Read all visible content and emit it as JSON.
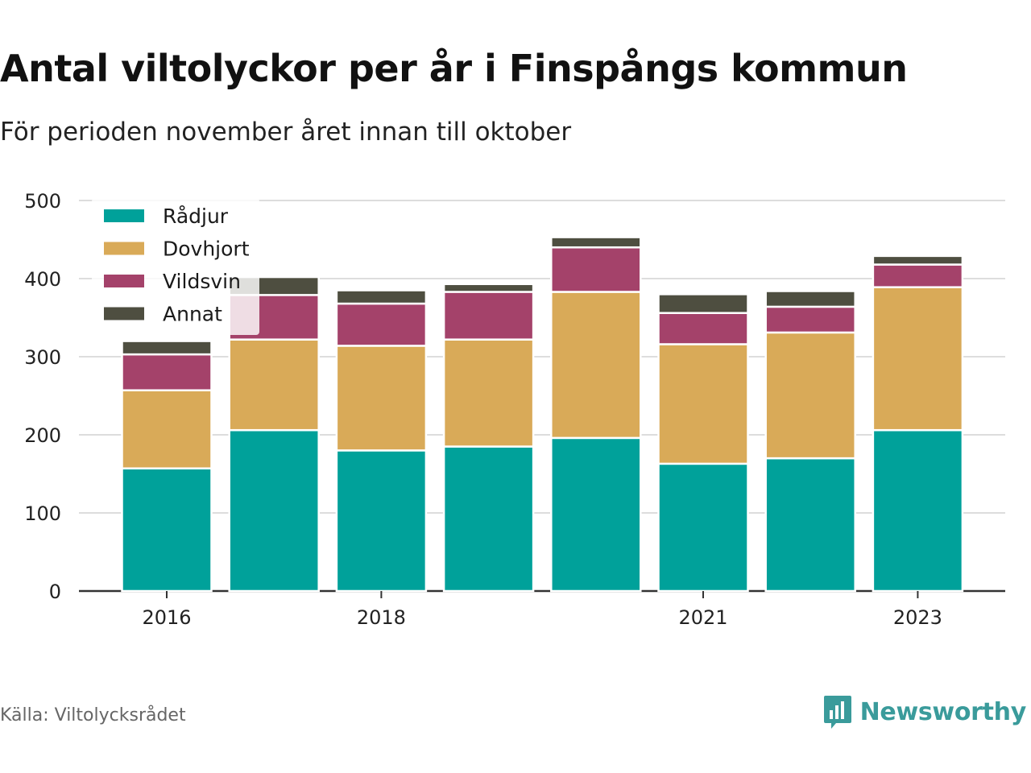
{
  "header": {
    "title": "Antal viltolyckor per år i Finspångs kommun",
    "subtitle": "För perioden november året innan till oktober"
  },
  "footer": {
    "source": "Källa: Viltolycksrådet",
    "brand": "Newsworthy",
    "brand_icon": "newsworthy-logo-icon"
  },
  "colors": {
    "Rådjur": "#00a19a",
    "Dovhjort": "#d9aa58",
    "Vildsvin": "#a4426a",
    "Annat": "#4e4e40",
    "grid": "#dddddd",
    "axis": "#333333",
    "brand": "#3a9b9b"
  },
  "chart_data": {
    "type": "bar",
    "stacked": true,
    "categories": [
      "2016",
      "2017",
      "2018",
      "2019",
      "2020",
      "2021",
      "2022",
      "2023"
    ],
    "tick_labels": [
      "2016",
      "",
      "2018",
      "",
      "",
      "2021",
      "",
      "2023"
    ],
    "series": [
      {
        "name": "Rådjur",
        "values": [
          157,
          206,
          180,
          185,
          196,
          163,
          170,
          206
        ]
      },
      {
        "name": "Dovhjort",
        "values": [
          100,
          116,
          134,
          137,
          187,
          153,
          161,
          183
        ]
      },
      {
        "name": "Vildsvin",
        "values": [
          46,
          57,
          54,
          61,
          57,
          40,
          33,
          29
        ]
      },
      {
        "name": "Annat",
        "values": [
          17,
          23,
          17,
          10,
          13,
          24,
          20,
          11
        ]
      }
    ],
    "ylim": [
      0,
      500
    ],
    "yticks": [
      0,
      100,
      200,
      300,
      400,
      500
    ],
    "grid": true,
    "legend_position": "top-left"
  }
}
